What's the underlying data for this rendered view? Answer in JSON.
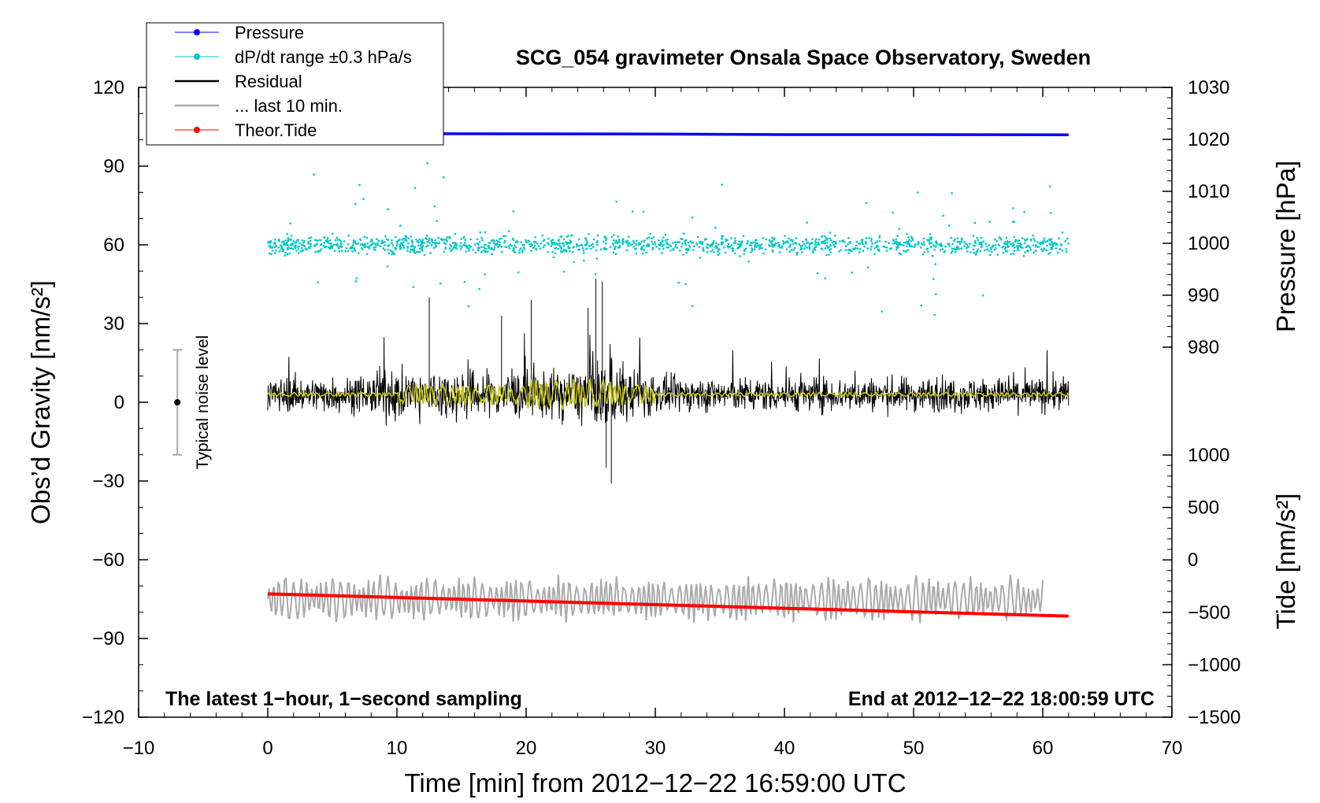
{
  "chart_data": {
    "type": "line",
    "title": "SCG_054 gravimeter Onsala Space Observatory, Sweden",
    "xlabel": "Time [min] from 2012−12−22 16:59:00 UTC",
    "ylabel_left": "Obs’d Gravity [nm/s²]",
    "ylabel_right_pressure": "Pressure [hPa]",
    "ylabel_right_tide": "Tide [nm/s²]",
    "xlim": [
      -10,
      70
    ],
    "ylim": [
      -120,
      120
    ],
    "x_ticks": [
      "−10",
      "0",
      "10",
      "20",
      "30",
      "40",
      "50",
      "60",
      "70"
    ],
    "y_ticks_left": [
      "120",
      "90",
      "60",
      "30",
      "0",
      "−30",
      "−60",
      "−90",
      "−120"
    ],
    "pressure_axis": {
      "range_hPa": [
        980,
        1030
      ],
      "ticks": [
        "1030",
        "1020",
        "1010",
        "1000",
        "990",
        "980"
      ]
    },
    "tide_axis": {
      "range": [
        -1500,
        1000
      ],
      "ticks": [
        "1000",
        "500",
        "0",
        "−500",
        "−1000",
        "−1500"
      ]
    },
    "legend": {
      "position": "top-left",
      "entries": [
        {
          "label": "Pressure",
          "color": "#0000ff",
          "marker": "dot"
        },
        {
          "label": "dP/dt range ±0.3 hPa/s",
          "color": "#00c8c8",
          "marker": "dot"
        },
        {
          "label": "Residual",
          "color": "#000000",
          "marker": "line"
        },
        {
          "label": "... last 10 min.",
          "color": "#aaaaaa",
          "marker": "line"
        },
        {
          "label": "Theor.Tide",
          "color": "#ff0000",
          "marker": "dot"
        }
      ]
    },
    "annotations": {
      "left": "The latest 1−hour, 1−second sampling",
      "right": "End at 2012−12−22 18:00:59 UTC",
      "noise_label": "Typical noise level"
    },
    "noise_level": {
      "x": -7,
      "center": 0,
      "range": [
        -20,
        20
      ]
    },
    "series": [
      {
        "name": "Pressure",
        "color": "#0000ff",
        "x": [
          0,
          10,
          20,
          30,
          40,
          50,
          62
        ],
        "values_hPa": [
          1020.3,
          1020.3,
          1020.3,
          1020.2,
          1020.1,
          1020.1,
          1020.0
        ],
        "display_y": [
          102.4,
          102.4,
          102.3,
          102.2,
          102.0,
          102.0,
          101.9
        ]
      },
      {
        "name": "dP/dt range ±0.3 hPa/s",
        "color": "#00c8c8",
        "x_range": [
          0,
          62
        ],
        "center": 60,
        "typical_spread": [
          52,
          68
        ],
        "outliers_range": [
          24,
          95
        ]
      },
      {
        "name": "Residual",
        "color": "#000000",
        "x_range": [
          0,
          62
        ],
        "center": 3,
        "typical_spread": [
          -10,
          15
        ],
        "extremes": [
          -31,
          47
        ]
      },
      {
        "name": "Residual (smoothed)",
        "color": "#c8c800",
        "x_range": [
          0,
          62
        ],
        "center": 3,
        "typical_spread": [
          -3,
          11
        ]
      },
      {
        "name": "... last 10 min.",
        "color": "#aaaaaa",
        "x_range": [
          0,
          60
        ],
        "center": -75,
        "typical_spread": [
          -88,
          -60
        ]
      },
      {
        "name": "Theor.Tide",
        "color": "#ff0000",
        "x": [
          0,
          62
        ],
        "display_y": [
          -73,
          -81.5
        ]
      }
    ]
  }
}
